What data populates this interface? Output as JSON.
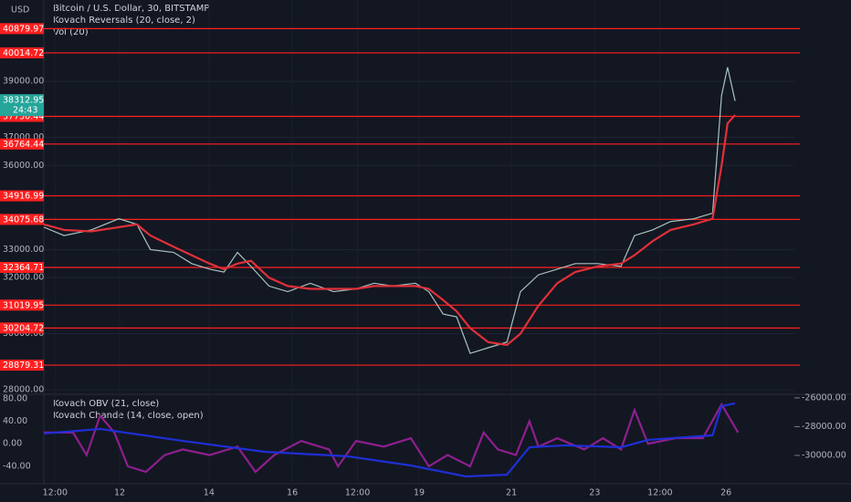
{
  "chart_data": [
    {
      "type": "line",
      "title": "Bitcoin / U.S. Dollar, 30, BITSTAMP",
      "indicators": [
        "Kovach Reversals (20, close, 2)",
        "Vol (20)"
      ],
      "currency": "USD",
      "last_price": 38312.95,
      "countdown": "24:43",
      "xlim": [
        0,
        100
      ],
      "xticks": [
        {
          "value": 1.5,
          "label": "12:00"
        },
        {
          "value": 10.1,
          "label": "12"
        },
        {
          "value": 22,
          "label": "14"
        },
        {
          "value": 33.1,
          "label": "16"
        },
        {
          "value": 41.8,
          "label": "12:00"
        },
        {
          "value": 50,
          "label": "19"
        },
        {
          "value": 62.3,
          "label": "21"
        },
        {
          "value": 73.4,
          "label": "23"
        },
        {
          "value": 82.1,
          "label": "12:00"
        },
        {
          "value": 90.9,
          "label": "26"
        }
      ],
      "ylim": [
        27840,
        41900
      ],
      "yticks": [
        {
          "value": 28000,
          "label": "28000.00"
        },
        {
          "value": 30000,
          "label": "30000.00"
        },
        {
          "value": 32000,
          "label": "32000.00"
        },
        {
          "value": 33000,
          "label": "33000.00"
        },
        {
          "value": 36000,
          "label": "36000.00"
        },
        {
          "value": 37000,
          "label": "37000.00"
        },
        {
          "value": 39000,
          "label": "39000.00"
        }
      ],
      "grid": true,
      "level_color": "#ff1f1f",
      "levels": [
        40879.97,
        40014.72,
        37750.44,
        36764.44,
        34916.99,
        34075.68,
        32364.71,
        31019.95,
        30204.72,
        28879.31
      ],
      "x": [
        0,
        2.7,
        6.3,
        10,
        12.4,
        14.2,
        17.3,
        19.7,
        22.1,
        24,
        25.8,
        27.6,
        30,
        32.5,
        35.5,
        38.6,
        41.6,
        44,
        46.5,
        49.5,
        51.3,
        53.2,
        55,
        56.8,
        59.2,
        61.7,
        63.5,
        65.9,
        68.4,
        70.8,
        73.8,
        76.9,
        78.7,
        81.1,
        83.5,
        86.6,
        89.1,
        90.3,
        91.1,
        92.1
      ],
      "series": [
        {
          "color": "#a8c4bf",
          "values": [
            33800,
            33500,
            33700,
            34100,
            33900,
            33000,
            32900,
            32500,
            32300,
            32200,
            32900,
            32400,
            31700,
            31500,
            31800,
            31500,
            31600,
            31800,
            31700,
            31800,
            31500,
            30700,
            30600,
            29300,
            29500,
            29700,
            31500,
            32100,
            32300,
            32500,
            32500,
            32400,
            33500,
            33700,
            34000,
            34100,
            34300,
            38500,
            39500,
            38300
          ]
        },
        {
          "color": "#e0303a",
          "values": [
            33900,
            33700,
            33650,
            33800,
            33900,
            33500,
            33100,
            32800,
            32500,
            32300,
            32500,
            32600,
            32000,
            31700,
            31600,
            31600,
            31600,
            31700,
            31700,
            31700,
            31600,
            31200,
            30800,
            30200,
            29700,
            29600,
            30000,
            31000,
            31800,
            32200,
            32400,
            32500,
            32800,
            33300,
            33700,
            33900,
            34100,
            36000,
            37500,
            37800
          ]
        }
      ]
    },
    {
      "type": "line",
      "indicators": [
        "Kovach OBV (21, close)",
        "Kovach Chande (14, close, open)"
      ],
      "xlim": [
        0,
        100
      ],
      "ylim": [
        -71,
        88
      ],
      "yticks": [
        {
          "value": 80,
          "label": "80.00"
        },
        {
          "value": 40,
          "label": "40.00"
        },
        {
          "value": 0,
          "label": "0.00"
        },
        {
          "value": -40,
          "label": "-40.00"
        }
      ],
      "y2lim": [
        -31970,
        -25750
      ],
      "y2ticks": [
        {
          "value": -26000,
          "label": "-26000.00"
        },
        {
          "value": -28000,
          "label": "-28000.00"
        },
        {
          "value": -30000,
          "label": "-30000.00"
        }
      ],
      "series": [
        {
          "color": "#8e1f8e",
          "x": [
            0,
            3.9,
            5.7,
            7.5,
            9.4,
            11.2,
            13.6,
            16.1,
            18.5,
            22.1,
            25.8,
            28.2,
            30.7,
            34.3,
            38,
            39.2,
            41.6,
            45.3,
            48.9,
            51.3,
            53.8,
            56.8,
            58.6,
            60.5,
            62.9,
            64.7,
            65.9,
            68.4,
            72,
            74.5,
            76.9,
            78.7,
            80.5,
            84.2,
            87.8,
            90.3,
            92.5
          ],
          "values": [
            20,
            20,
            -20,
            50,
            20,
            -40,
            -50,
            -20,
            -10,
            -20,
            -5,
            -50,
            -20,
            5,
            -10,
            -40,
            5,
            -5,
            10,
            -40,
            -20,
            -40,
            20,
            -10,
            -20,
            40,
            -5,
            10,
            -10,
            10,
            -10,
            60,
            0,
            10,
            10,
            70,
            20
          ]
        },
        {
          "color": "#1f2fd6",
          "axis": "y2",
          "x": [
            0,
            7.5,
            18.5,
            29.4,
            40.4,
            48.9,
            56.2,
            61.7,
            64.7,
            69.6,
            76.9,
            80.5,
            89.1,
            90.3,
            92.1
          ],
          "values": [
            -28476,
            -28160,
            -28990,
            -29750,
            -30060,
            -30700,
            -31460,
            -31340,
            -29430,
            -29300,
            -29430,
            -28920,
            -28600,
            -26570,
            -26380
          ]
        }
      ]
    }
  ]
}
